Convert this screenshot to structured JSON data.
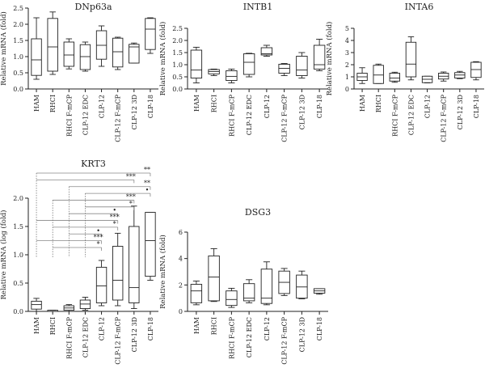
{
  "chart_data": [
    {
      "type": "box",
      "title": "DNp63a",
      "ylabel": "Relative mRNA (fold)",
      "ylim": [
        0,
        2.5
      ],
      "yticks": [
        "0.0",
        "0.5",
        "1.0",
        "1.5",
        "2.0",
        "2.5"
      ],
      "ytick_values": [
        0,
        0.5,
        1,
        1.5,
        2,
        2.5
      ],
      "categories": [
        "HAM",
        "RHCI",
        "RHCI F-mCP",
        "CLP-12 EDC",
        "CLP-12",
        "CLP-12 F-mCP",
        "CLP-12 3D",
        "CLP-18"
      ],
      "boxes": [
        {
          "min": 0.3,
          "q1": 0.42,
          "median": 0.9,
          "q3": 1.55,
          "max": 2.2
        },
        {
          "min": 0.45,
          "q1": 0.55,
          "median": 1.3,
          "q3": 2.18,
          "max": 2.38
        },
        {
          "min": 0.62,
          "q1": 0.7,
          "median": 1.05,
          "q3": 1.45,
          "max": 1.55
        },
        {
          "min": 0.55,
          "q1": 0.6,
          "median": 1.0,
          "q3": 1.37,
          "max": 1.45
        },
        {
          "min": 0.7,
          "q1": 0.92,
          "median": 1.35,
          "q3": 1.8,
          "max": 1.95
        },
        {
          "min": 0.6,
          "q1": 0.68,
          "median": 1.15,
          "q3": 1.57,
          "max": 1.6
        },
        {
          "min": 0.8,
          "q1": 0.8,
          "median": 1.3,
          "q3": 1.38,
          "max": 1.42
        },
        {
          "min": 1.1,
          "q1": 1.22,
          "median": 1.85,
          "q3": 2.18,
          "max": 2.2
        }
      ]
    },
    {
      "type": "box",
      "title": "INTB1",
      "ylabel": "Relative mRNA (fold)",
      "ylim": [
        0,
        2.5
      ],
      "yticks": [
        "0.0",
        "0.5",
        "1.0",
        "1.5",
        "2.0",
        "2.5"
      ],
      "ytick_values": [
        0,
        0.5,
        1,
        1.5,
        2,
        2.5
      ],
      "categories": [
        "HAM",
        "RHCI",
        "RHCI F-mCP",
        "CLP-12 EDC",
        "CLP-12",
        "CLP-12 F-mCP",
        "CLP-12 3D",
        "CLP-18"
      ],
      "boxes": [
        {
          "min": 0.25,
          "q1": 0.45,
          "median": 0.78,
          "q3": 1.6,
          "max": 1.72
        },
        {
          "min": 0.55,
          "q1": 0.62,
          "median": 0.72,
          "q3": 0.8,
          "max": 0.82
        },
        {
          "min": 0.25,
          "q1": 0.35,
          "median": 0.52,
          "q3": 0.75,
          "max": 0.82
        },
        {
          "min": 0.5,
          "q1": 0.6,
          "median": 1.1,
          "q3": 1.45,
          "max": 1.47
        },
        {
          "min": 1.35,
          "q1": 1.4,
          "median": 1.45,
          "q3": 1.7,
          "max": 1.8
        },
        {
          "min": 0.55,
          "q1": 0.65,
          "median": 0.85,
          "q3": 1.02,
          "max": 1.05
        },
        {
          "min": 0.45,
          "q1": 0.55,
          "median": 0.78,
          "q3": 1.35,
          "max": 1.5
        },
        {
          "min": 0.75,
          "q1": 0.82,
          "median": 1.0,
          "q3": 1.8,
          "max": 2.05
        }
      ]
    },
    {
      "type": "box",
      "title": "INTA6",
      "ylabel": "Relative mRNA (fold)",
      "ylim": [
        0,
        5
      ],
      "yticks": [
        "0",
        "1",
        "2",
        "3",
        "4",
        "5"
      ],
      "ytick_values": [
        0,
        1,
        2,
        3,
        4,
        5
      ],
      "categories": [
        "HAM",
        "RHCI",
        "RHCI F-mCP",
        "CLP-12 EDC",
        "CLP-12",
        "CLP-12 F-mCP",
        "CLP-12 3D",
        "CLP-18"
      ],
      "boxes": [
        {
          "min": 0.45,
          "q1": 0.7,
          "median": 1.0,
          "q3": 1.3,
          "max": 1.75
        },
        {
          "min": 0.45,
          "q1": 0.45,
          "median": 1.15,
          "q3": 1.95,
          "max": 2.05
        },
        {
          "min": 0.55,
          "q1": 0.65,
          "median": 0.9,
          "q3": 1.3,
          "max": 1.38
        },
        {
          "min": 0.75,
          "q1": 1.0,
          "median": 2.05,
          "q3": 3.85,
          "max": 4.3
        },
        {
          "min": 0.5,
          "q1": 0.52,
          "median": 0.8,
          "q3": 1.05,
          "max": 1.05
        },
        {
          "min": 0.65,
          "q1": 0.82,
          "median": 1.05,
          "q3": 1.3,
          "max": 1.4
        },
        {
          "min": 0.85,
          "q1": 0.9,
          "median": 1.15,
          "q3": 1.35,
          "max": 1.45
        },
        {
          "min": 0.75,
          "q1": 0.95,
          "median": 1.6,
          "q3": 2.2,
          "max": 2.25
        }
      ]
    },
    {
      "type": "box",
      "title": "KRT3",
      "ylabel": "Relative mRNA (log (fold)",
      "ylim": [
        0,
        2
      ],
      "yticks": [
        "0.0",
        "0.5",
        "1.0",
        "1.5",
        "2.0"
      ],
      "ytick_values": [
        0,
        0.5,
        1,
        1.5,
        2
      ],
      "categories": [
        "HAM",
        "RHCI",
        "RHCI F-mCP",
        "CLP-12 EDC",
        "CLP-12",
        "CLP-12 F-mCP",
        "CLP-12 3D",
        "CLP-18"
      ],
      "boxes": [
        {
          "min": 0.0,
          "q1": 0.04,
          "median": 0.12,
          "q3": 0.18,
          "max": 0.23
        },
        {
          "min": 0.0,
          "q1": 0.0,
          "median": 0.0,
          "q3": 0.02,
          "max": 0.02
        },
        {
          "min": 0.0,
          "q1": 0.02,
          "median": 0.06,
          "q3": 0.1,
          "max": 0.12
        },
        {
          "min": 0.02,
          "q1": 0.05,
          "median": 0.13,
          "q3": 0.2,
          "max": 0.25
        },
        {
          "min": 0.1,
          "q1": 0.15,
          "median": 0.45,
          "q3": 0.78,
          "max": 0.9
        },
        {
          "min": 0.1,
          "q1": 0.2,
          "median": 0.55,
          "q3": 1.15,
          "max": 1.38
        },
        {
          "min": 0.05,
          "q1": 0.15,
          "median": 0.42,
          "q3": 1.5,
          "max": 1.86
        },
        {
          "min": 0.55,
          "q1": 0.62,
          "median": 1.25,
          "q3": 1.75,
          "max": 1.75
        }
      ],
      "significance": [
        {
          "from": 0,
          "to": 7,
          "label": "**"
        },
        {
          "from": 0,
          "to": 6,
          "label": "***"
        },
        {
          "from": 2,
          "to": 7,
          "label": "**"
        },
        {
          "from": 3,
          "to": 7,
          "label": "•"
        },
        {
          "from": 1,
          "to": 6,
          "label": "***"
        },
        {
          "from": 3,
          "to": 6,
          "label": "*"
        },
        {
          "from": 2,
          "to": 5,
          "label": "•"
        },
        {
          "from": 0,
          "to": 5,
          "label": "***"
        },
        {
          "from": 1,
          "to": 5,
          "label": "*"
        },
        {
          "from": 2,
          "to": 4,
          "label": "•"
        },
        {
          "from": 0,
          "to": 4,
          "label": "***"
        },
        {
          "from": 1,
          "to": 4,
          "label": "*"
        }
      ]
    },
    {
      "type": "box",
      "title": "DSG3",
      "ylabel": "Relative mRNA (fold)",
      "ylim": [
        0,
        6
      ],
      "yticks": [
        "0",
        "2",
        "4",
        "6"
      ],
      "ytick_values": [
        0,
        2,
        4,
        6
      ],
      "categories": [
        "HAM",
        "RHCI",
        "RHCI F-mCP",
        "CLP-12 EDC",
        "CLP-12",
        "CLP-12 F-mCP",
        "CLP-12 3D",
        "CLP-18"
      ],
      "boxes": [
        {
          "min": 0.5,
          "q1": 0.65,
          "median": 1.55,
          "q3": 2.05,
          "max": 2.3
        },
        {
          "min": 0.75,
          "q1": 0.8,
          "median": 2.6,
          "q3": 4.2,
          "max": 4.75
        },
        {
          "min": 0.3,
          "q1": 0.45,
          "median": 0.9,
          "q3": 1.55,
          "max": 1.75
        },
        {
          "min": 0.65,
          "q1": 0.8,
          "median": 1.0,
          "q3": 2.1,
          "max": 2.4
        },
        {
          "min": 0.5,
          "q1": 0.6,
          "median": 1.0,
          "q3": 3.2,
          "max": 3.75
        },
        {
          "min": 1.2,
          "q1": 1.35,
          "median": 2.2,
          "q3": 3.05,
          "max": 3.25
        },
        {
          "min": 0.95,
          "q1": 1.0,
          "median": 1.85,
          "q3": 2.75,
          "max": 3.05
        },
        {
          "min": 1.3,
          "q1": 1.38,
          "median": 1.55,
          "q3": 1.72,
          "max": 1.72
        }
      ]
    }
  ]
}
